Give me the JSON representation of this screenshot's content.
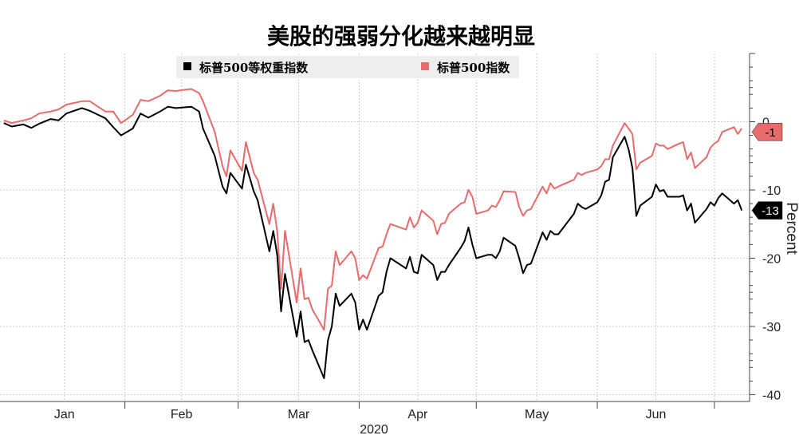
{
  "chart_data": {
    "type": "line",
    "title": "美股的强弱分化越来越明显",
    "ylabel": "Percent",
    "xlabel": "2020",
    "ylim": [
      -41,
      10
    ],
    "yticks": [
      0,
      -10,
      -20,
      -30,
      -40
    ],
    "ytick_labels": [
      "0",
      "-10",
      "-20",
      "-30",
      "-40"
    ],
    "xticks": [
      "Jan",
      "Feb",
      "Mar",
      "Apr",
      "May",
      "Jun"
    ],
    "grid": true,
    "legend_position": "top",
    "series": [
      {
        "name": "标普500等权重指数",
        "color": "#000000",
        "last_value_label": "-13",
        "points": [
          [
            "2020-01-01",
            -0.2
          ],
          [
            "2020-01-03",
            -0.7
          ],
          [
            "2020-01-06",
            -0.4
          ],
          [
            "2020-01-08",
            -0.9
          ],
          [
            "2020-01-10",
            -0.3
          ],
          [
            "2020-01-13",
            0.4
          ],
          [
            "2020-01-15",
            0.2
          ],
          [
            "2020-01-17",
            1.2
          ],
          [
            "2020-01-21",
            2.0
          ],
          [
            "2020-01-23",
            1.6
          ],
          [
            "2020-01-27",
            0.5
          ],
          [
            "2020-01-29",
            -0.8
          ],
          [
            "2020-01-31",
            -2.0
          ],
          [
            "2020-02-03",
            -1.0
          ],
          [
            "2020-02-05",
            1.2
          ],
          [
            "2020-02-07",
            0.6
          ],
          [
            "2020-02-10",
            1.5
          ],
          [
            "2020-02-12",
            2.2
          ],
          [
            "2020-02-14",
            2.0
          ],
          [
            "2020-02-18",
            2.2
          ],
          [
            "2020-02-20",
            1.5
          ],
          [
            "2020-02-21",
            -1.0
          ],
          [
            "2020-02-24",
            -5.0
          ],
          [
            "2020-02-26",
            -9.5
          ],
          [
            "2020-02-27",
            -10.5
          ],
          [
            "2020-02-28",
            -7.5
          ],
          [
            "2020-03-02",
            -9.8
          ],
          [
            "2020-03-03",
            -6.3
          ],
          [
            "2020-03-05",
            -10.2
          ],
          [
            "2020-03-06",
            -11.5
          ],
          [
            "2020-03-09",
            -19.0
          ],
          [
            "2020-03-10",
            -16.0
          ],
          [
            "2020-03-11",
            -19.5
          ],
          [
            "2020-03-12",
            -27.8
          ],
          [
            "2020-03-13",
            -22.3
          ],
          [
            "2020-03-16",
            -31.5
          ],
          [
            "2020-03-17",
            -27.8
          ],
          [
            "2020-03-18",
            -32.3
          ],
          [
            "2020-03-19",
            -32.0
          ],
          [
            "2020-03-20",
            -33.5
          ],
          [
            "2020-03-23",
            -37.6
          ],
          [
            "2020-03-24",
            -32.0
          ],
          [
            "2020-03-25",
            -30.0
          ],
          [
            "2020-03-26",
            -25.2
          ],
          [
            "2020-03-27",
            -27.0
          ],
          [
            "2020-03-30",
            -25.2
          ],
          [
            "2020-03-31",
            -26.5
          ],
          [
            "2020-04-01",
            -30.5
          ],
          [
            "2020-04-02",
            -29.0
          ],
          [
            "2020-04-03",
            -30.5
          ],
          [
            "2020-04-06",
            -25.5
          ],
          [
            "2020-04-07",
            -25.0
          ],
          [
            "2020-04-08",
            -22.0
          ],
          [
            "2020-04-09",
            -20.0
          ],
          [
            "2020-04-13",
            -21.5
          ],
          [
            "2020-04-14",
            -19.8
          ],
          [
            "2020-04-15",
            -22.0
          ],
          [
            "2020-04-16",
            -22.2
          ],
          [
            "2020-04-17",
            -19.5
          ],
          [
            "2020-04-20",
            -21.0
          ],
          [
            "2020-04-21",
            -23.2
          ],
          [
            "2020-04-22",
            -22.0
          ],
          [
            "2020-04-23",
            -22.0
          ],
          [
            "2020-04-24",
            -21.0
          ],
          [
            "2020-04-27",
            -18.5
          ],
          [
            "2020-04-28",
            -17.5
          ],
          [
            "2020-04-29",
            -15.5
          ],
          [
            "2020-04-30",
            -18.0
          ],
          [
            "2020-05-01",
            -20.0
          ],
          [
            "2020-05-04",
            -19.5
          ],
          [
            "2020-05-05",
            -19.5
          ],
          [
            "2020-05-06",
            -20.0
          ],
          [
            "2020-05-07",
            -19.0
          ],
          [
            "2020-05-08",
            -17.0
          ],
          [
            "2020-05-11",
            -18.2
          ],
          [
            "2020-05-12",
            -20.0
          ],
          [
            "2020-05-13",
            -22.2
          ],
          [
            "2020-05-14",
            -21.0
          ],
          [
            "2020-05-15",
            -20.8
          ],
          [
            "2020-05-18",
            -16.2
          ],
          [
            "2020-05-19",
            -17.3
          ],
          [
            "2020-05-20",
            -16.0
          ],
          [
            "2020-05-21",
            -16.5
          ],
          [
            "2020-05-22",
            -16.5
          ],
          [
            "2020-05-26",
            -13.5
          ],
          [
            "2020-05-27",
            -12.0
          ],
          [
            "2020-05-28",
            -12.5
          ],
          [
            "2020-05-29",
            -12.8
          ],
          [
            "2020-06-01",
            -11.8
          ],
          [
            "2020-06-02",
            -10.8
          ],
          [
            "2020-06-03",
            -8.8
          ],
          [
            "2020-06-04",
            -8.5
          ],
          [
            "2020-06-05",
            -5.2
          ],
          [
            "2020-06-08",
            -2.2
          ],
          [
            "2020-06-09",
            -4.0
          ],
          [
            "2020-06-10",
            -6.8
          ],
          [
            "2020-06-11",
            -13.8
          ],
          [
            "2020-06-12",
            -12.3
          ],
          [
            "2020-06-15",
            -11.0
          ],
          [
            "2020-06-16",
            -9.2
          ],
          [
            "2020-06-17",
            -10.2
          ],
          [
            "2020-06-18",
            -10.0
          ],
          [
            "2020-06-19",
            -11.0
          ],
          [
            "2020-06-22",
            -11.0
          ],
          [
            "2020-06-23",
            -10.8
          ],
          [
            "2020-06-24",
            -13.0
          ],
          [
            "2020-06-25",
            -12.0
          ],
          [
            "2020-06-26",
            -14.8
          ],
          [
            "2020-06-29",
            -12.8
          ],
          [
            "2020-06-30",
            -11.8
          ],
          [
            "2020-07-01",
            -12.3
          ],
          [
            "2020-07-02",
            -11.2
          ],
          [
            "2020-07-03",
            -10.5
          ],
          [
            "2020-07-06",
            -12.0
          ],
          [
            "2020-07-07",
            -11.5
          ],
          [
            "2020-07-08",
            -13.0
          ]
        ]
      },
      {
        "name": "标普500指数",
        "color": "#e86b6b",
        "last_value_label": "-1",
        "points": [
          [
            "2020-01-01",
            0.2
          ],
          [
            "2020-01-03",
            -0.2
          ],
          [
            "2020-01-06",
            0.2
          ],
          [
            "2020-01-08",
            0.5
          ],
          [
            "2020-01-10",
            1.2
          ],
          [
            "2020-01-13",
            1.5
          ],
          [
            "2020-01-15",
            1.8
          ],
          [
            "2020-01-17",
            2.5
          ],
          [
            "2020-01-21",
            3.0
          ],
          [
            "2020-01-23",
            3.0
          ],
          [
            "2020-01-27",
            1.5
          ],
          [
            "2020-01-29",
            1.5
          ],
          [
            "2020-01-31",
            -0.2
          ],
          [
            "2020-02-03",
            1.0
          ],
          [
            "2020-02-05",
            3.2
          ],
          [
            "2020-02-07",
            3.0
          ],
          [
            "2020-02-10",
            3.8
          ],
          [
            "2020-02-12",
            4.6
          ],
          [
            "2020-02-14",
            4.5
          ],
          [
            "2020-02-18",
            4.8
          ],
          [
            "2020-02-20",
            4.2
          ],
          [
            "2020-02-21",
            3.0
          ],
          [
            "2020-02-24",
            -1.5
          ],
          [
            "2020-02-26",
            -6.5
          ],
          [
            "2020-02-27",
            -8.0
          ],
          [
            "2020-02-28",
            -4.2
          ],
          [
            "2020-03-02",
            -7.2
          ],
          [
            "2020-03-03",
            -3.0
          ],
          [
            "2020-03-05",
            -7.5
          ],
          [
            "2020-03-06",
            -8.5
          ],
          [
            "2020-03-09",
            -15.0
          ],
          [
            "2020-03-10",
            -12.0
          ],
          [
            "2020-03-11",
            -16.0
          ],
          [
            "2020-03-12",
            -24.5
          ],
          [
            "2020-03-13",
            -16.0
          ],
          [
            "2020-03-16",
            -26.5
          ],
          [
            "2020-03-17",
            -21.5
          ],
          [
            "2020-03-18",
            -26.0
          ],
          [
            "2020-03-19",
            -25.8
          ],
          [
            "2020-03-20",
            -27.5
          ],
          [
            "2020-03-23",
            -30.5
          ],
          [
            "2020-03-24",
            -24.5
          ],
          [
            "2020-03-25",
            -24.0
          ],
          [
            "2020-03-26",
            -19.0
          ],
          [
            "2020-03-27",
            -21.0
          ],
          [
            "2020-03-30",
            -19.0
          ],
          [
            "2020-03-31",
            -20.0
          ],
          [
            "2020-04-01",
            -23.2
          ],
          [
            "2020-04-02",
            -22.5
          ],
          [
            "2020-04-03",
            -23.0
          ],
          [
            "2020-04-06",
            -18.5
          ],
          [
            "2020-04-07",
            -18.3
          ],
          [
            "2020-04-08",
            -16.5
          ],
          [
            "2020-04-09",
            -15.0
          ],
          [
            "2020-04-13",
            -15.8
          ],
          [
            "2020-04-14",
            -14.0
          ],
          [
            "2020-04-15",
            -15.5
          ],
          [
            "2020-04-16",
            -14.8
          ],
          [
            "2020-04-17",
            -13.0
          ],
          [
            "2020-04-20",
            -14.5
          ],
          [
            "2020-04-21",
            -16.5
          ],
          [
            "2020-04-22",
            -15.0
          ],
          [
            "2020-04-23",
            -14.8
          ],
          [
            "2020-04-24",
            -13.5
          ],
          [
            "2020-04-27",
            -12.0
          ],
          [
            "2020-04-28",
            -11.8
          ],
          [
            "2020-04-29",
            -10.0
          ],
          [
            "2020-04-30",
            -11.0
          ],
          [
            "2020-05-01",
            -13.5
          ],
          [
            "2020-05-04",
            -13.0
          ],
          [
            "2020-05-05",
            -12.3
          ],
          [
            "2020-05-06",
            -12.5
          ],
          [
            "2020-05-07",
            -11.5
          ],
          [
            "2020-05-08",
            -10.2
          ],
          [
            "2020-05-11",
            -10.3
          ],
          [
            "2020-05-12",
            -12.5
          ],
          [
            "2020-05-13",
            -13.8
          ],
          [
            "2020-05-14",
            -13.0
          ],
          [
            "2020-05-15",
            -12.8
          ],
          [
            "2020-05-18",
            -9.5
          ],
          [
            "2020-05-19",
            -10.5
          ],
          [
            "2020-05-20",
            -9.0
          ],
          [
            "2020-05-21",
            -9.8
          ],
          [
            "2020-05-22",
            -9.5
          ],
          [
            "2020-05-26",
            -8.5
          ],
          [
            "2020-05-27",
            -7.5
          ],
          [
            "2020-05-28",
            -7.8
          ],
          [
            "2020-05-29",
            -7.5
          ],
          [
            "2020-06-01",
            -7.0
          ],
          [
            "2020-06-02",
            -6.5
          ],
          [
            "2020-06-03",
            -5.5
          ],
          [
            "2020-06-04",
            -5.5
          ],
          [
            "2020-06-05",
            -3.5
          ],
          [
            "2020-06-08",
            -0.2
          ],
          [
            "2020-06-09",
            -1.0
          ],
          [
            "2020-06-10",
            -1.8
          ],
          [
            "2020-06-11",
            -7.0
          ],
          [
            "2020-06-12",
            -6.0
          ],
          [
            "2020-06-15",
            -5.0
          ],
          [
            "2020-06-16",
            -3.2
          ],
          [
            "2020-06-17",
            -3.5
          ],
          [
            "2020-06-18",
            -3.5
          ],
          [
            "2020-06-19",
            -4.0
          ],
          [
            "2020-06-22",
            -3.2
          ],
          [
            "2020-06-23",
            -3.0
          ],
          [
            "2020-06-24",
            -5.5
          ],
          [
            "2020-06-25",
            -4.5
          ],
          [
            "2020-06-26",
            -6.8
          ],
          [
            "2020-06-29",
            -5.2
          ],
          [
            "2020-06-30",
            -3.8
          ],
          [
            "2020-07-01",
            -3.2
          ],
          [
            "2020-07-02",
            -2.8
          ],
          [
            "2020-07-03",
            -1.5
          ],
          [
            "2020-07-06",
            -0.8
          ],
          [
            "2020-07-07",
            -1.8
          ],
          [
            "2020-07-08",
            -1.0
          ]
        ]
      }
    ]
  }
}
